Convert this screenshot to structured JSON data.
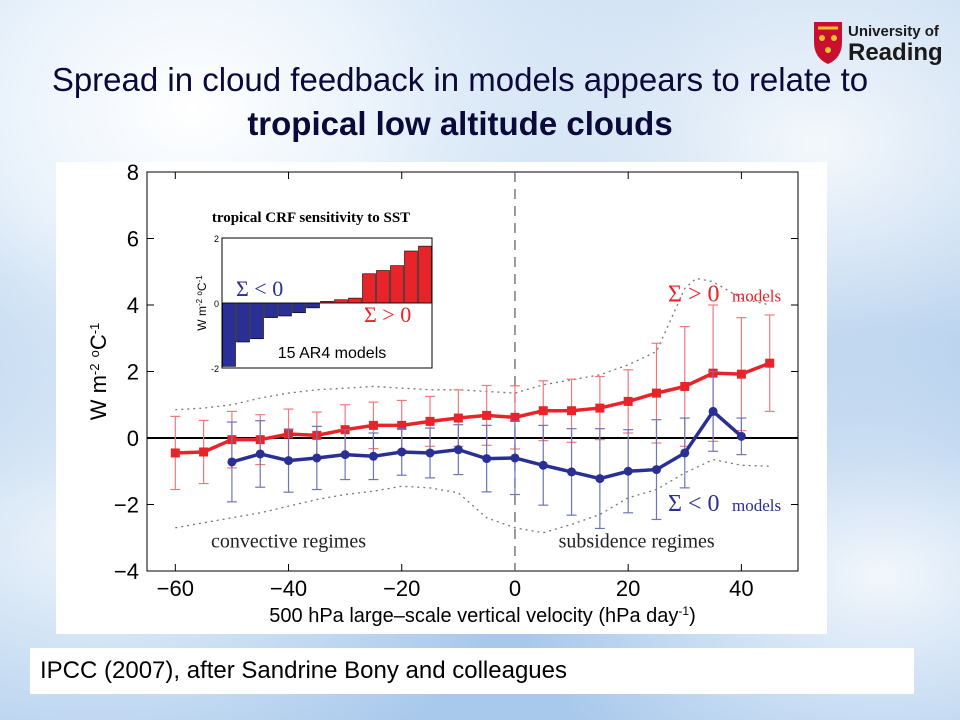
{
  "slide": {
    "title_normal": "Spread in cloud feedback in models appears to relate to ",
    "title_bold": "tropical low altitude clouds",
    "caption": "IPCC (2007), after Sandrine Bony and colleagues",
    "logo_text_line1": "University of",
    "logo_text_line2": "Reading"
  },
  "chart_data": [
    {
      "type": "line",
      "xlabel": "500 hPa large–scale vertical velocity (hPa day",
      "xlabel_sup": "-1",
      "xlabel_close": ")",
      "ylabel": "W m",
      "ylabel_sup1": "-2",
      "ylabel_mid": " ",
      "ylabel_deg": "o",
      "ylabel_end": "C",
      "ylabel_sup2": "-1",
      "xlim": [
        -65,
        50
      ],
      "ylim": [
        -4,
        8
      ],
      "xticks": [
        -60,
        -40,
        -20,
        0,
        20,
        40
      ],
      "xtick_labels": [
        "−60",
        "−40",
        "−20",
        "0",
        "20",
        "40"
      ],
      "yticks": [
        -4,
        -2,
        0,
        2,
        4,
        6,
        8
      ],
      "ytick_labels": [
        "−4",
        "−2",
        "0",
        "2",
        "4",
        "6",
        "8"
      ],
      "annotations": {
        "left": "convective regimes",
        "right": "subsidence regimes",
        "pos_label": "Σ > 0",
        "pos_suffix": "models",
        "neg_label": "Σ < 0",
        "neg_suffix": "models"
      },
      "colors": {
        "positive": "#e8242a",
        "negative": "#2a2f96",
        "error_pos": "#f07a7e",
        "error_neg": "#6f74b8"
      },
      "series": [
        {
          "name": "Σ > 0 models",
          "x": [
            -60,
            -55,
            -50,
            -45,
            -40,
            -35,
            -30,
            -25,
            -20,
            -15,
            -10,
            -5,
            0,
            5,
            10,
            15,
            20,
            25,
            30,
            35,
            40,
            45
          ],
          "y": [
            -0.45,
            -0.42,
            -0.05,
            -0.05,
            0.12,
            0.08,
            0.25,
            0.38,
            0.38,
            0.5,
            0.6,
            0.68,
            0.62,
            0.82,
            0.82,
            0.9,
            1.1,
            1.35,
            1.55,
            1.95,
            1.92,
            2.25
          ],
          "err": [
            1.1,
            0.95,
            0.85,
            0.75,
            0.75,
            0.7,
            0.75,
            0.7,
            0.75,
            0.75,
            0.85,
            0.9,
            0.95,
            0.9,
            0.95,
            0.95,
            0.95,
            1.5,
            1.8,
            2.05,
            1.7,
            1.45
          ]
        },
        {
          "name": "Σ < 0 models",
          "x": [
            -50,
            -45,
            -40,
            -35,
            -30,
            -25,
            -20,
            -15,
            -10,
            -5,
            0,
            5,
            10,
            15,
            20,
            25,
            30,
            35,
            40
          ],
          "y": [
            -0.72,
            -0.48,
            -0.68,
            -0.6,
            -0.5,
            -0.55,
            -0.42,
            -0.45,
            -0.35,
            -0.62,
            -0.6,
            -0.82,
            -1.02,
            -1.22,
            -1.0,
            -0.95,
            -0.45,
            0.8,
            0.05
          ],
          "err": [
            1.2,
            1.0,
            0.95,
            0.95,
            0.75,
            0.7,
            0.7,
            0.75,
            0.75,
            1.0,
            1.1,
            1.2,
            1.3,
            1.5,
            1.25,
            1.5,
            1.05,
            1.2,
            0.55
          ]
        },
        {
          "name": "upper envelope",
          "x": [
            -60,
            -55,
            -50,
            -45,
            -40,
            -35,
            -30,
            -25,
            -20,
            -15,
            -10,
            -5,
            0,
            5,
            10,
            15,
            20,
            25,
            30,
            32,
            35,
            40,
            45
          ],
          "y": [
            0.85,
            0.9,
            1.0,
            1.2,
            1.35,
            1.45,
            1.5,
            1.55,
            1.5,
            1.45,
            1.45,
            1.4,
            1.35,
            1.6,
            1.75,
            1.9,
            2.2,
            2.6,
            4.5,
            4.8,
            4.7,
            4.2,
            4.0
          ]
        },
        {
          "name": "lower envelope",
          "x": [
            -60,
            -55,
            -50,
            -45,
            -40,
            -35,
            -30,
            -25,
            -20,
            -15,
            -10,
            -5,
            0,
            5,
            10,
            15,
            20,
            25,
            30,
            35,
            40,
            45
          ],
          "y": [
            -2.7,
            -2.55,
            -2.4,
            -2.25,
            -2.05,
            -1.85,
            -1.7,
            -1.6,
            -1.45,
            -1.5,
            -1.65,
            -2.4,
            -2.7,
            -2.85,
            -2.6,
            -2.3,
            -1.8,
            -1.55,
            -1.05,
            -0.65,
            -0.82,
            -0.85
          ]
        }
      ]
    },
    {
      "type": "bar",
      "title": "tropical CRF sensitivity to SST",
      "ylabel": "W m",
      "ylabel_sup1": "-2",
      "ylabel_deg": "o",
      "ylabel_end": "C",
      "ylabel_sup2": "-1",
      "ylim": [
        -2,
        2
      ],
      "yticks": [
        -2,
        0,
        2
      ],
      "neg_label": "Σ < 0",
      "pos_label": "Σ > 0",
      "xlabel": "15 AR4 models",
      "colors": {
        "negative": "#2a2f96",
        "positive": "#e8242a"
      },
      "values": [
        -1.95,
        -1.2,
        -1.1,
        -0.45,
        -0.4,
        -0.3,
        -0.15,
        0.05,
        0.1,
        0.15,
        0.9,
        1.0,
        1.15,
        1.6,
        1.75
      ]
    }
  ]
}
